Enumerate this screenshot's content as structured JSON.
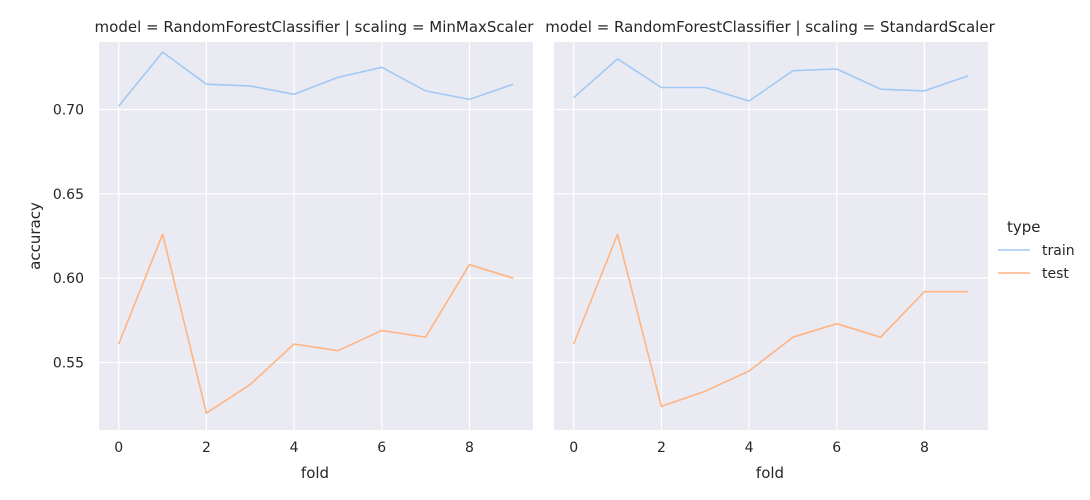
{
  "chart_data": [
    {
      "type": "line",
      "title": "model = RandomForestClassifier | scaling = MinMaxScaler",
      "xlabel": "fold",
      "ylabel": "accuracy",
      "x": [
        0,
        1,
        2,
        3,
        4,
        5,
        6,
        7,
        8,
        9
      ],
      "xticks": [
        "0",
        "2",
        "4",
        "6",
        "8"
      ],
      "yticks": [
        "0.55",
        "0.60",
        "0.65",
        "0.70"
      ],
      "xlim": [
        -0.45,
        9.45
      ],
      "ylim": [
        0.51,
        0.74
      ],
      "grid": true,
      "series": [
        {
          "name": "train",
          "color": "#a1c9f4",
          "values": [
            0.702,
            0.734,
            0.715,
            0.714,
            0.709,
            0.719,
            0.725,
            0.711,
            0.706,
            0.715
          ]
        },
        {
          "name": "test",
          "color": "#ffb482",
          "values": [
            0.561,
            0.626,
            0.52,
            0.537,
            0.561,
            0.557,
            0.569,
            0.565,
            0.608,
            0.6
          ]
        }
      ]
    },
    {
      "type": "line",
      "title": "model = RandomForestClassifier | scaling = StandardScaler",
      "xlabel": "fold",
      "ylabel": "",
      "x": [
        0,
        1,
        2,
        3,
        4,
        5,
        6,
        7,
        8,
        9
      ],
      "xticks": [
        "0",
        "2",
        "4",
        "6",
        "8"
      ],
      "yticks": [
        "0.55",
        "0.60",
        "0.65",
        "0.70"
      ],
      "xlim": [
        -0.45,
        9.45
      ],
      "ylim": [
        0.51,
        0.74
      ],
      "grid": true,
      "series": [
        {
          "name": "train",
          "color": "#a1c9f4",
          "values": [
            0.707,
            0.73,
            0.713,
            0.713,
            0.705,
            0.723,
            0.724,
            0.712,
            0.711,
            0.72
          ]
        },
        {
          "name": "test",
          "color": "#ffb482",
          "values": [
            0.561,
            0.626,
            0.524,
            0.533,
            0.545,
            0.565,
            0.573,
            0.565,
            0.592,
            0.592
          ]
        }
      ]
    }
  ],
  "legend": {
    "title": "type",
    "items": [
      {
        "label": "train",
        "color": "#a1c9f4"
      },
      {
        "label": "test",
        "color": "#ffb482"
      }
    ]
  }
}
